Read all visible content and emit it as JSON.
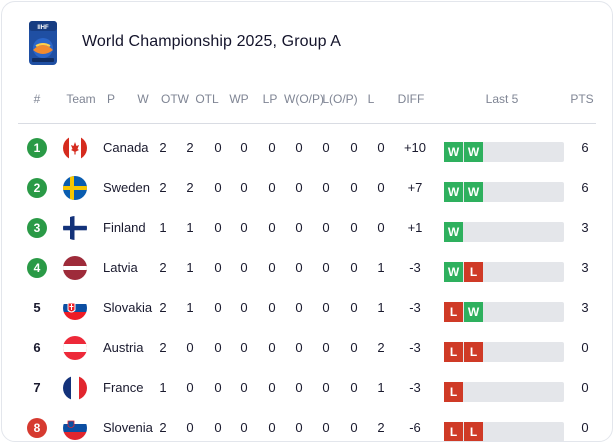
{
  "header": {
    "title": "World Championship 2025, Group A",
    "logo_text": "IIHF"
  },
  "columns": [
    "#",
    "Team",
    "P",
    "W",
    "OTW",
    "OTL",
    "WP",
    "LP",
    "W(O/P)",
    "L(O/P)",
    "L",
    "DIFF",
    "Last 5",
    "PTS"
  ],
  "colors": {
    "qualified": "#2a9a46",
    "relegation": "#d63a30",
    "win": "#2eb05e",
    "loss": "#cf3a26",
    "form_bg": "#e4e6ea"
  },
  "rows": [
    {
      "rank": "1",
      "zone": "qualified",
      "team": "Canada",
      "flag": "canada-flag-icon",
      "stats": [
        "2",
        "2",
        "0",
        "0",
        "0",
        "0",
        "0",
        "0",
        "0"
      ],
      "diff": "+10",
      "last5": [
        "W",
        "W"
      ],
      "pts": "6"
    },
    {
      "rank": "2",
      "zone": "qualified",
      "team": "Sweden",
      "flag": "sweden-flag-icon",
      "stats": [
        "2",
        "2",
        "0",
        "0",
        "0",
        "0",
        "0",
        "0",
        "0"
      ],
      "diff": "+7",
      "last5": [
        "W",
        "W"
      ],
      "pts": "6"
    },
    {
      "rank": "3",
      "zone": "qualified",
      "team": "Finland",
      "flag": "finland-flag-icon",
      "stats": [
        "1",
        "1",
        "0",
        "0",
        "0",
        "0",
        "0",
        "0",
        "0"
      ],
      "diff": "+1",
      "last5": [
        "W"
      ],
      "pts": "3"
    },
    {
      "rank": "4",
      "zone": "qualified",
      "team": "Latvia",
      "flag": "latvia-flag-icon",
      "stats": [
        "2",
        "1",
        "0",
        "0",
        "0",
        "0",
        "0",
        "0",
        "1"
      ],
      "diff": "-3",
      "last5": [
        "W",
        "L"
      ],
      "pts": "3"
    },
    {
      "rank": "5",
      "zone": "none",
      "team": "Slovakia",
      "flag": "slovakia-flag-icon",
      "stats": [
        "2",
        "1",
        "0",
        "0",
        "0",
        "0",
        "0",
        "0",
        "1"
      ],
      "diff": "-3",
      "last5": [
        "L",
        "W"
      ],
      "pts": "3"
    },
    {
      "rank": "6",
      "zone": "none",
      "team": "Austria",
      "flag": "austria-flag-icon",
      "stats": [
        "2",
        "0",
        "0",
        "0",
        "0",
        "0",
        "0",
        "0",
        "2"
      ],
      "diff": "-3",
      "last5": [
        "L",
        "L"
      ],
      "pts": "0"
    },
    {
      "rank": "7",
      "zone": "none",
      "team": "France",
      "flag": "france-flag-icon",
      "stats": [
        "1",
        "0",
        "0",
        "0",
        "0",
        "0",
        "0",
        "0",
        "1"
      ],
      "diff": "-3",
      "last5": [
        "L"
      ],
      "pts": "0"
    },
    {
      "rank": "8",
      "zone": "relegation",
      "team": "Slovenia",
      "flag": "slovenia-flag-icon",
      "stats": [
        "2",
        "0",
        "0",
        "0",
        "0",
        "0",
        "0",
        "0",
        "2"
      ],
      "diff": "-6",
      "last5": [
        "L",
        "L"
      ],
      "pts": "0"
    }
  ]
}
